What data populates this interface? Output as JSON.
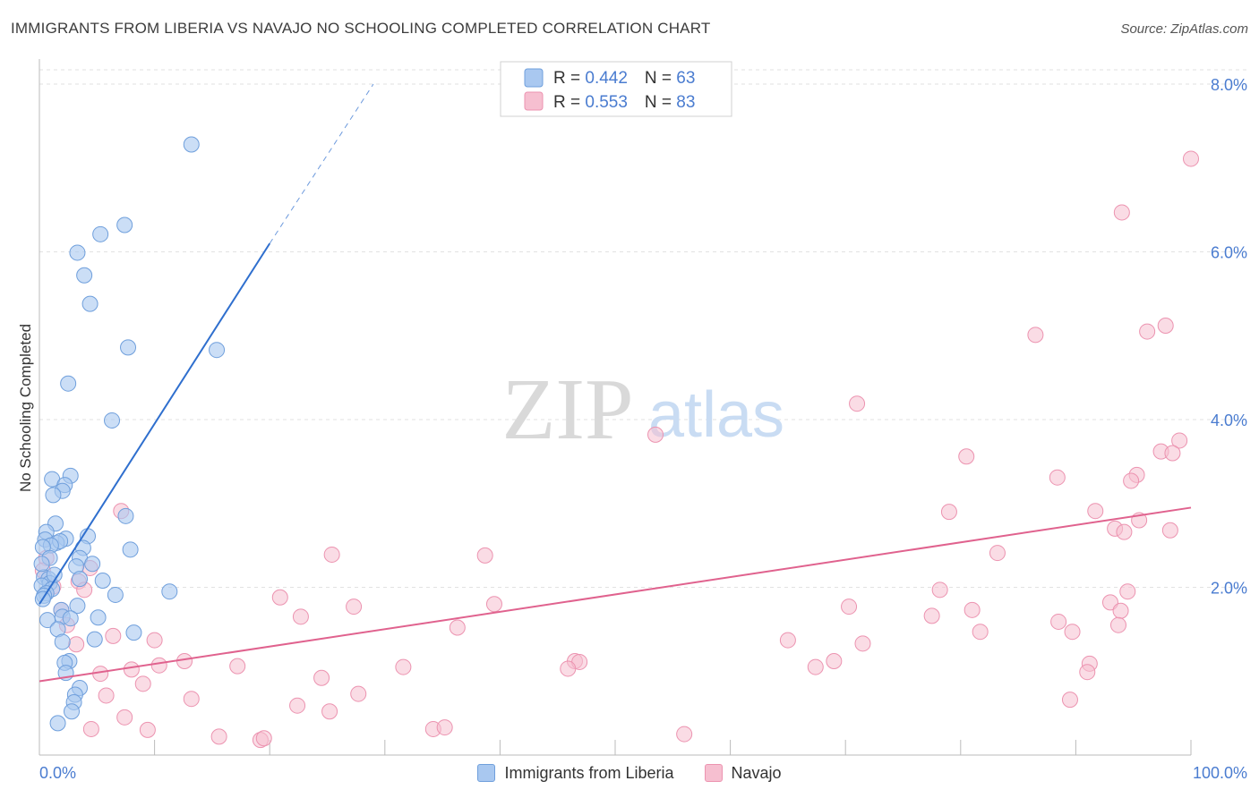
{
  "header": {
    "title": "IMMIGRANTS FROM LIBERIA VS NAVAJO NO SCHOOLING COMPLETED CORRELATION CHART",
    "source": "Source: ZipAtlas.com"
  },
  "watermark": {
    "zip": "ZIP",
    "atlas": "atlas"
  },
  "colors": {
    "blue_fill": "#a9c8f0",
    "blue_stroke": "#6f9fdc",
    "blue_line": "#2f6fce",
    "pink_fill": "#f6bfd0",
    "pink_stroke": "#ec93b0",
    "pink_line": "#e0628e",
    "axis_text": "#4a7cd0",
    "grid": "#e2e2e2"
  },
  "legend_top": {
    "rows": [
      {
        "r_label": "R = ",
        "r_value": "0.442",
        "n_label": "N = ",
        "n_value": "63"
      },
      {
        "r_label": "R = ",
        "r_value": "0.553",
        "n_label": "N = ",
        "n_value": "83"
      }
    ]
  },
  "legend_bottom": {
    "items": [
      {
        "label": "Immigrants from Liberia"
      },
      {
        "label": "Navajo"
      }
    ]
  },
  "chart_data": {
    "type": "scatter",
    "title": "IMMIGRANTS FROM LIBERIA VS NAVAJO NO SCHOOLING COMPLETED CORRELATION CHART",
    "xlabel": "",
    "ylabel": "No Schooling Completed",
    "xlim": [
      0,
      100
    ],
    "ylim": [
      0,
      8.0
    ],
    "x_tick_labels": [
      "0.0%",
      "100.0%"
    ],
    "y_ticks": [
      2.0,
      4.0,
      6.0,
      8.0
    ],
    "y_tick_labels": [
      "2.0%",
      "4.0%",
      "6.0%",
      "8.0%"
    ],
    "grid": true,
    "legend_position": "top-center",
    "series": [
      {
        "name": "Immigrants from Liberia",
        "r": 0.442,
        "n": 63,
        "trend": {
          "x0": 0,
          "y0": 1.8,
          "x1": 20,
          "y1": 6.1,
          "dashed_to_x": 29,
          "dashed_to_y": 8.0
        },
        "points": [
          [
            13.2,
            7.28
          ],
          [
            7.4,
            6.32
          ],
          [
            5.3,
            6.21
          ],
          [
            3.3,
            5.99
          ],
          [
            3.9,
            5.72
          ],
          [
            4.4,
            5.38
          ],
          [
            7.7,
            4.86
          ],
          [
            15.4,
            4.83
          ],
          [
            2.5,
            4.43
          ],
          [
            6.3,
            3.99
          ],
          [
            2.7,
            3.33
          ],
          [
            1.1,
            3.29
          ],
          [
            2.2,
            3.22
          ],
          [
            2.0,
            3.15
          ],
          [
            1.2,
            3.1
          ],
          [
            7.5,
            2.85
          ],
          [
            1.4,
            2.76
          ],
          [
            0.6,
            2.66
          ],
          [
            4.2,
            2.61
          ],
          [
            2.3,
            2.58
          ],
          [
            0.5,
            2.57
          ],
          [
            1.5,
            2.53
          ],
          [
            1.8,
            2.55
          ],
          [
            1.0,
            2.5
          ],
          [
            0.3,
            2.48
          ],
          [
            3.8,
            2.47
          ],
          [
            7.9,
            2.45
          ],
          [
            0.9,
            2.35
          ],
          [
            3.5,
            2.35
          ],
          [
            4.6,
            2.28
          ],
          [
            3.2,
            2.25
          ],
          [
            0.4,
            2.12
          ],
          [
            0.8,
            2.1
          ],
          [
            3.5,
            2.1
          ],
          [
            5.5,
            2.08
          ],
          [
            0.9,
            2.05
          ],
          [
            0.2,
            2.02
          ],
          [
            1.1,
            1.98
          ],
          [
            0.6,
            1.93
          ],
          [
            11.3,
            1.95
          ],
          [
            0.4,
            1.9
          ],
          [
            6.6,
            1.91
          ],
          [
            3.3,
            1.78
          ],
          [
            1.9,
            1.73
          ],
          [
            2.0,
            1.65
          ],
          [
            2.7,
            1.63
          ],
          [
            0.7,
            1.61
          ],
          [
            5.1,
            1.64
          ],
          [
            1.6,
            1.5
          ],
          [
            8.2,
            1.46
          ],
          [
            4.8,
            1.38
          ],
          [
            2.0,
            1.35
          ],
          [
            2.6,
            1.12
          ],
          [
            2.2,
            1.1
          ],
          [
            2.3,
            0.98
          ],
          [
            3.5,
            0.8
          ],
          [
            3.1,
            0.72
          ],
          [
            3.0,
            0.63
          ],
          [
            2.8,
            0.52
          ],
          [
            1.6,
            0.38
          ],
          [
            0.3,
            1.86
          ],
          [
            0.2,
            2.28
          ],
          [
            1.3,
            2.15
          ]
        ]
      },
      {
        "name": "Navajo",
        "r": 0.553,
        "n": 83,
        "trend": {
          "x0": 0,
          "y0": 0.88,
          "x1": 100,
          "y1": 2.95
        },
        "points": [
          [
            100.0,
            7.11
          ],
          [
            94.0,
            6.47
          ],
          [
            97.8,
            5.12
          ],
          [
            96.2,
            5.05
          ],
          [
            86.5,
            5.01
          ],
          [
            71.0,
            4.19
          ],
          [
            53.5,
            3.82
          ],
          [
            99.0,
            3.75
          ],
          [
            97.4,
            3.62
          ],
          [
            98.4,
            3.6
          ],
          [
            80.5,
            3.56
          ],
          [
            95.3,
            3.34
          ],
          [
            88.4,
            3.31
          ],
          [
            94.8,
            3.27
          ],
          [
            91.7,
            2.91
          ],
          [
            79.0,
            2.9
          ],
          [
            95.5,
            2.8
          ],
          [
            98.2,
            2.68
          ],
          [
            93.4,
            2.7
          ],
          [
            94.2,
            2.66
          ],
          [
            7.1,
            2.91
          ],
          [
            25.4,
            2.39
          ],
          [
            38.7,
            2.38
          ],
          [
            83.2,
            2.41
          ],
          [
            3.4,
            2.07
          ],
          [
            1.2,
            2.01
          ],
          [
            0.6,
            2.35
          ],
          [
            4.4,
            2.23
          ],
          [
            3.9,
            1.97
          ],
          [
            20.9,
            1.88
          ],
          [
            39.5,
            1.8
          ],
          [
            27.3,
            1.77
          ],
          [
            70.3,
            1.77
          ],
          [
            93.0,
            1.82
          ],
          [
            94.5,
            1.95
          ],
          [
            78.2,
            1.97
          ],
          [
            81.0,
            1.73
          ],
          [
            93.9,
            1.72
          ],
          [
            77.5,
            1.66
          ],
          [
            88.5,
            1.59
          ],
          [
            22.7,
            1.65
          ],
          [
            93.7,
            1.55
          ],
          [
            36.3,
            1.52
          ],
          [
            81.7,
            1.47
          ],
          [
            89.7,
            1.47
          ],
          [
            2.4,
            1.55
          ],
          [
            1.9,
            1.73
          ],
          [
            6.4,
            1.42
          ],
          [
            10.0,
            1.37
          ],
          [
            65.0,
            1.37
          ],
          [
            71.5,
            1.33
          ],
          [
            3.2,
            1.32
          ],
          [
            12.6,
            1.12
          ],
          [
            10.4,
            1.07
          ],
          [
            17.2,
            1.06
          ],
          [
            46.5,
            1.12
          ],
          [
            46.9,
            1.11
          ],
          [
            31.6,
            1.05
          ],
          [
            67.4,
            1.05
          ],
          [
            69.0,
            1.12
          ],
          [
            91.2,
            1.09
          ],
          [
            91.0,
            0.99
          ],
          [
            45.9,
            1.03
          ],
          [
            5.3,
            0.97
          ],
          [
            8.0,
            1.02
          ],
          [
            24.5,
            0.92
          ],
          [
            9.0,
            0.85
          ],
          [
            5.8,
            0.71
          ],
          [
            13.2,
            0.67
          ],
          [
            27.7,
            0.73
          ],
          [
            22.4,
            0.59
          ],
          [
            89.5,
            0.66
          ],
          [
            25.2,
            0.52
          ],
          [
            7.4,
            0.45
          ],
          [
            4.5,
            0.31
          ],
          [
            9.4,
            0.3
          ],
          [
            15.6,
            0.22
          ],
          [
            19.2,
            0.18
          ],
          [
            19.5,
            0.2
          ],
          [
            34.2,
            0.31
          ],
          [
            35.2,
            0.33
          ],
          [
            56.0,
            0.25
          ],
          [
            0.3,
            2.2
          ]
        ]
      }
    ]
  }
}
